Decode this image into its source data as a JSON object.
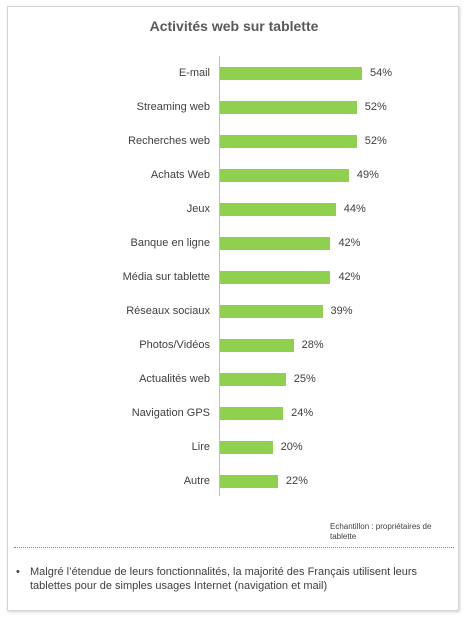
{
  "chart_data": {
    "type": "bar",
    "orientation": "horizontal",
    "title": "Activités web sur tablette",
    "categories": [
      "E-mail",
      "Streaming web",
      "Recherches web",
      "Achats Web",
      "Jeux",
      "Banque en ligne",
      "Média sur tablette",
      "Réseaux sociaux",
      "Photos/Vidéos",
      "Actualités web",
      "Navigation GPS",
      "Lire",
      "Autre"
    ],
    "values": [
      54,
      52,
      52,
      49,
      44,
      42,
      42,
      39,
      28,
      25,
      24,
      20,
      22
    ],
    "value_labels": [
      "54%",
      "52%",
      "52%",
      "49%",
      "44%",
      "42%",
      "42%",
      "39%",
      "28%",
      "25%",
      "24%",
      "20%",
      "22%"
    ],
    "unit": "%",
    "xlim": [
      0,
      80
    ],
    "grid": false,
    "legend": "none",
    "bar_color": "#8fd14f"
  },
  "sample_note": "Echantillon : propriétaires de tablette",
  "bullet_text": "Malgré l’étendue de leurs fonctionnalités, la majorité des Français utilisent leurs tablettes pour de simples usages Internet (navigation et mail)"
}
